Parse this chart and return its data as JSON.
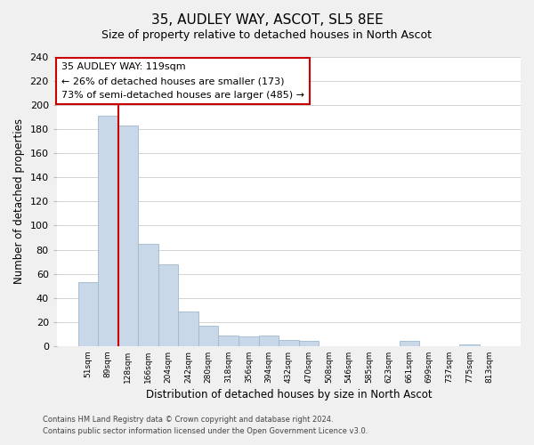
{
  "title": "35, AUDLEY WAY, ASCOT, SL5 8EE",
  "subtitle": "Size of property relative to detached houses in North Ascot",
  "xlabel": "Distribution of detached houses by size in North Ascot",
  "ylabel": "Number of detached properties",
  "footer_lines": [
    "Contains HM Land Registry data © Crown copyright and database right 2024.",
    "Contains public sector information licensed under the Open Government Licence v3.0."
  ],
  "bar_labels": [
    "51sqm",
    "89sqm",
    "128sqm",
    "166sqm",
    "204sqm",
    "242sqm",
    "280sqm",
    "318sqm",
    "356sqm",
    "394sqm",
    "432sqm",
    "470sqm",
    "508sqm",
    "546sqm",
    "585sqm",
    "623sqm",
    "661sqm",
    "699sqm",
    "737sqm",
    "775sqm",
    "813sqm"
  ],
  "bar_values": [
    53,
    191,
    183,
    85,
    68,
    29,
    17,
    9,
    8,
    9,
    5,
    4,
    0,
    0,
    0,
    0,
    4,
    0,
    0,
    1,
    0
  ],
  "bar_color": "#c8d8e8",
  "bar_edge_color": "#a0b8cc",
  "marker_line_color": "#cc0000",
  "annotation_title": "35 AUDLEY WAY: 119sqm",
  "annotation_line1": "← 26% of detached houses are smaller (173)",
  "annotation_line2": "73% of semi-detached houses are larger (485) →",
  "annotation_box_color": "#ffffff",
  "annotation_box_edge_color": "#cc0000",
  "ylim": [
    0,
    240
  ],
  "yticks": [
    0,
    20,
    40,
    60,
    80,
    100,
    120,
    140,
    160,
    180,
    200,
    220,
    240
  ],
  "background_color": "#f0f0f0",
  "plot_background_color": "#ffffff"
}
